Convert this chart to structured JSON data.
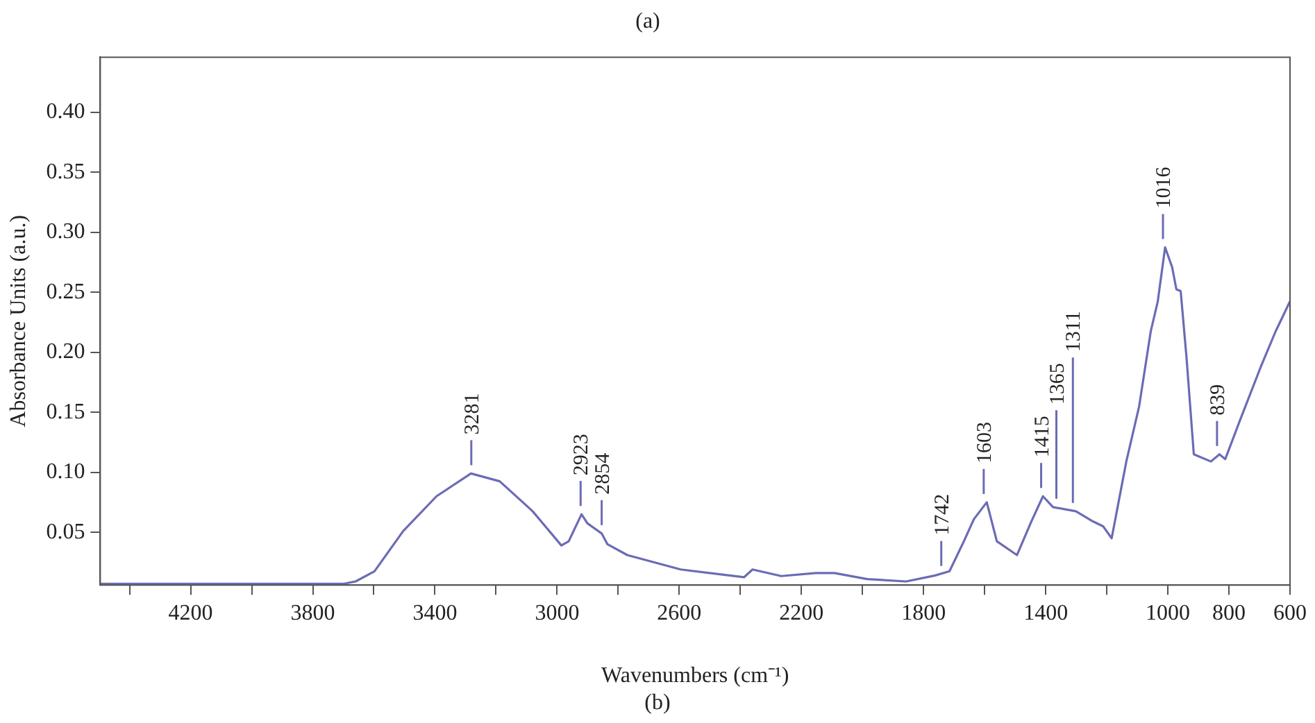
{
  "chart_data": {
    "type": "line",
    "title": "(a)",
    "xlabel": "Wavenumbers (cm⁻¹)",
    "ylabel": "Absorbance Units (a.u.)",
    "x": [
      4496,
      4200,
      3800,
      3700,
      3660,
      3598,
      3504,
      3395,
      3282,
      3188,
      3080,
      2986,
      2962,
      2920,
      2901,
      2854,
      2835,
      2770,
      2595,
      2388,
      2360,
      2266,
      2153,
      2092,
      1984,
      1857,
      1762,
      1715,
      1668,
      1635,
      1593,
      1560,
      1494,
      1447,
      1409,
      1376,
      1301,
      1245,
      1212,
      1184,
      1136,
      1094,
      1056,
      1033,
      1009,
      986,
      972,
      958,
      939,
      915,
      859,
      831,
      812,
      765,
      694,
      647,
      600
    ],
    "series": [
      {
        "color": "#6b6bb5",
        "values": [
          0.007,
          0.007,
          0.007,
          0.007,
          0.009,
          0.0175,
          0.051,
          0.08,
          0.099,
          0.0925,
          0.0675,
          0.039,
          0.0425,
          0.065,
          0.0575,
          0.049,
          0.04,
          0.031,
          0.019,
          0.0125,
          0.019,
          0.0135,
          0.016,
          0.016,
          0.011,
          0.009,
          0.014,
          0.0175,
          0.0425,
          0.061,
          0.075,
          0.0425,
          0.031,
          0.059,
          0.08,
          0.071,
          0.0675,
          0.059,
          0.055,
          0.045,
          0.109,
          0.155,
          0.2175,
          0.2425,
          0.2875,
          0.271,
          0.2525,
          0.251,
          0.196,
          0.115,
          0.109,
          0.115,
          0.111,
          0.1425,
          0.189,
          0.2175,
          0.2425
        ]
      }
    ],
    "xlim": [
      4496,
      600
    ],
    "xticks": [
      {
        "value": 4400,
        "label": null
      },
      4200,
      {
        "value": 4000,
        "label": null
      },
      3800,
      {
        "value": 3600,
        "label": null
      },
      3400,
      {
        "value": 3200,
        "label": null
      },
      3000,
      {
        "value": 2800,
        "label": null
      },
      2600,
      {
        "value": 2400,
        "label": null
      },
      2200,
      {
        "value": 2000,
        "label": null
      },
      1800,
      {
        "value": 1600,
        "label": null
      },
      1400,
      {
        "value": 1200,
        "label": null
      },
      1000,
      800,
      600
    ],
    "ylim": [
      0.006,
      0.446
    ],
    "yticks": [
      {
        "value": 0.05,
        "label": "0.05"
      },
      {
        "value": 0.1,
        "label": "0.10"
      },
      {
        "value": 0.15,
        "label": "0.15"
      },
      {
        "value": 0.2,
        "label": "0.20"
      },
      {
        "value": 0.25,
        "label": "0.25"
      },
      {
        "value": 0.3,
        "label": "0.30"
      },
      {
        "value": 0.35,
        "label": "0.35"
      },
      {
        "value": 0.4,
        "label": "0.40"
      }
    ],
    "annotations": [
      {
        "text": "3281",
        "x": 3281,
        "y": 0.099
      },
      {
        "text": "2923",
        "x": 2923,
        "y": 0.065
      },
      {
        "text": "2854",
        "x": 2854,
        "y": 0.049
      },
      {
        "text": "1742",
        "x": 1742,
        "y": 0.015
      },
      {
        "text": "1603",
        "x": 1603,
        "y": 0.075
      },
      {
        "text": "1415",
        "x": 1415,
        "y": 0.08
      },
      {
        "text": "1365",
        "x": 1365,
        "y": 0.071
      },
      {
        "text": "1311",
        "x": 1311,
        "y": 0.0675
      },
      {
        "text": "1016",
        "x": 1016,
        "y": 0.2875
      },
      {
        "text": "839",
        "x": 839,
        "y": 0.115
      },
      "(b)"
    ],
    "grid": false,
    "legend": false,
    "marker": "none",
    "line_style": "solid"
  }
}
